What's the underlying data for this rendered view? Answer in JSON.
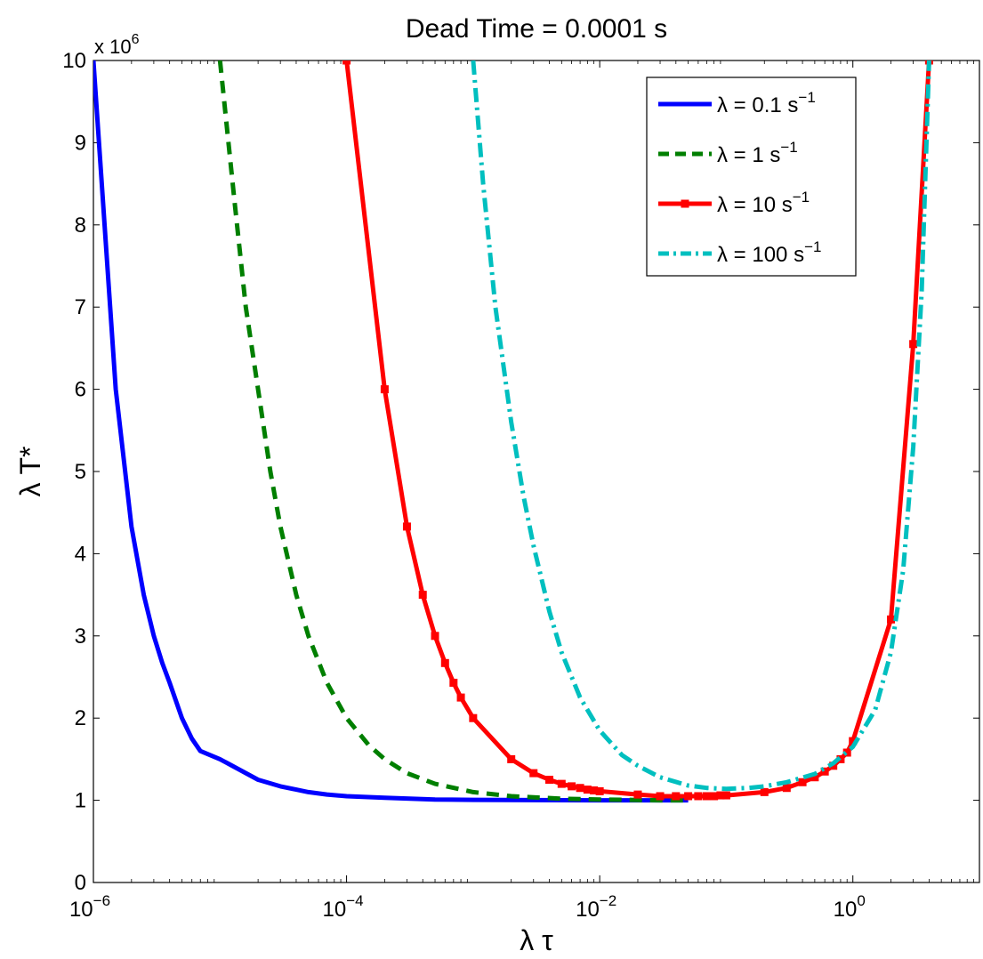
{
  "chart_data": {
    "type": "line",
    "title": "Dead Time = 0.0001 s",
    "xlabel": "λ τ",
    "ylabel": "λ T*",
    "x_scale": "log",
    "xlim": [
      1e-06,
      10
    ],
    "ylim": [
      0,
      10
    ],
    "y_multiplier": "x 10",
    "y_multiplier_exp": "6",
    "x_ticks": [
      {
        "value": 1e-06,
        "base": "10",
        "exp": "−6"
      },
      {
        "value": 0.0001,
        "base": "10",
        "exp": "−4"
      },
      {
        "value": 0.01,
        "base": "10",
        "exp": "−2"
      },
      {
        "value": 1,
        "base": "10",
        "exp": "0"
      }
    ],
    "y_ticks": [
      0,
      1,
      2,
      3,
      4,
      5,
      6,
      7,
      8,
      9,
      10
    ],
    "grid": false,
    "legend_position": "top-right",
    "series": [
      {
        "name": "λ = 0.1 s",
        "name_exp": "−1",
        "color": "#0000ff",
        "style": "solid",
        "markers": false,
        "x": [
          1e-06,
          1.5e-06,
          2e-06,
          2.5e-06,
          3e-06,
          3.5e-06,
          4e-06,
          5e-06,
          6e-06,
          7e-06,
          1e-05,
          2e-05,
          3e-05,
          4e-05,
          5e-05,
          7e-05,
          0.0001,
          0.0002,
          0.0005,
          0.001,
          0.01,
          0.05
        ],
        "y": [
          10.0,
          6.0,
          4.33,
          3.5,
          3.0,
          2.67,
          2.43,
          2.0,
          1.75,
          1.6,
          1.5,
          1.25,
          1.17,
          1.13,
          1.1,
          1.07,
          1.05,
          1.03,
          1.01,
          1.005,
          1.0,
          1.0
        ]
      },
      {
        "name": "λ = 1 s",
        "name_exp": "−1",
        "color": "#007f00",
        "style": "dashed",
        "markers": false,
        "x": [
          1e-05,
          1.3e-05,
          1.6e-05,
          2e-05,
          2.5e-05,
          3e-05,
          4e-05,
          5e-05,
          7e-05,
          0.0001,
          0.00015,
          0.0002,
          0.0003,
          0.0005,
          0.001,
          0.002,
          0.005,
          0.01,
          0.03,
          0.05
        ],
        "y": [
          10.0,
          8.3,
          7.0,
          6.0,
          5.0,
          4.33,
          3.5,
          3.0,
          2.43,
          2.0,
          1.67,
          1.5,
          1.33,
          1.2,
          1.1,
          1.05,
          1.02,
          1.01,
          1.0,
          1.0
        ]
      },
      {
        "name": "λ = 10 s",
        "name_exp": "−1",
        "color": "#ff0000",
        "style": "solid",
        "markers": true,
        "x": [
          0.0001,
          0.0002,
          0.0003,
          0.0004,
          0.0005,
          0.0006,
          0.0007,
          0.0008,
          0.001,
          0.002,
          0.003,
          0.004,
          0.005,
          0.006,
          0.007,
          0.008,
          0.009,
          0.01,
          0.02,
          0.03,
          0.04,
          0.05,
          0.06,
          0.07,
          0.08,
          0.09,
          0.1,
          0.2,
          0.3,
          0.4,
          0.5,
          0.6,
          0.7,
          0.8,
          0.9,
          1.0,
          2.0,
          3.0,
          4.0
        ],
        "y": [
          10.0,
          6.0,
          4.33,
          3.5,
          3.0,
          2.67,
          2.43,
          2.25,
          2.0,
          1.5,
          1.33,
          1.25,
          1.2,
          1.17,
          1.15,
          1.13,
          1.12,
          1.11,
          1.07,
          1.05,
          1.05,
          1.05,
          1.05,
          1.05,
          1.05,
          1.06,
          1.06,
          1.1,
          1.15,
          1.22,
          1.28,
          1.35,
          1.42,
          1.5,
          1.58,
          1.72,
          3.2,
          6.55,
          10.0
        ]
      },
      {
        "name": "λ = 100 s",
        "name_exp": "−1",
        "color": "#00bfbf",
        "style": "dashdot",
        "markers": false,
        "x": [
          0.001,
          0.0012,
          0.0015,
          0.002,
          0.0025,
          0.003,
          0.004,
          0.005,
          0.007,
          0.01,
          0.015,
          0.02,
          0.03,
          0.05,
          0.07,
          0.1,
          0.15,
          0.2,
          0.3,
          0.5,
          0.7,
          1.0,
          1.5,
          2.0,
          2.5,
          3.0,
          3.5,
          4.0
        ],
        "y": [
          10.0,
          8.5,
          7.0,
          5.6,
          4.7,
          4.1,
          3.3,
          2.8,
          2.25,
          1.85,
          1.55,
          1.42,
          1.28,
          1.18,
          1.15,
          1.14,
          1.15,
          1.17,
          1.22,
          1.32,
          1.45,
          1.65,
          2.1,
          2.8,
          3.8,
          5.3,
          7.2,
          10.0
        ]
      }
    ]
  }
}
